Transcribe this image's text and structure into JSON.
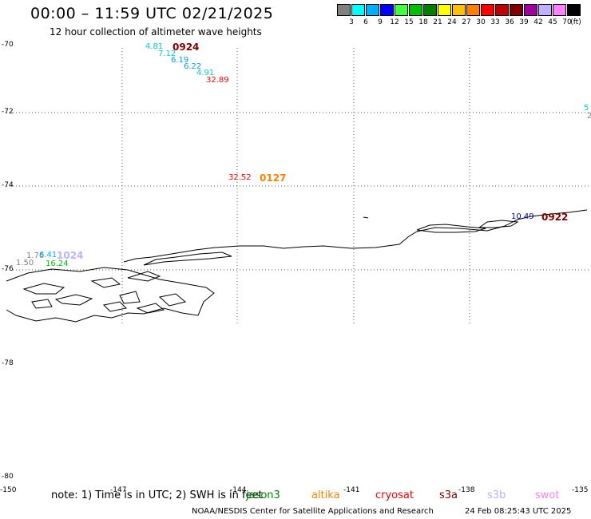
{
  "header": {
    "title": "00:00 – 11:59 UTC 02/21/2025",
    "subtitle": "12 hour collection of altimeter wave heights",
    "legend_unit": "(ft)"
  },
  "legend": [
    {
      "color": "#808080",
      "label": "3"
    },
    {
      "color": "#00ffff",
      "label": "6"
    },
    {
      "color": "#00b0ff",
      "label": "9"
    },
    {
      "color": "#0000ff",
      "label": "12"
    },
    {
      "color": "#40ff40",
      "label": "15"
    },
    {
      "color": "#00c000",
      "label": "18"
    },
    {
      "color": "#008000",
      "label": "21"
    },
    {
      "color": "#ffff00",
      "label": "24"
    },
    {
      "color": "#ffc000",
      "label": "27"
    },
    {
      "color": "#ff8000",
      "label": "30"
    },
    {
      "color": "#ff0000",
      "label": "33"
    },
    {
      "color": "#c00000",
      "label": "36"
    },
    {
      "color": "#800000",
      "label": "39"
    },
    {
      "color": "#a000a0",
      "label": "42"
    },
    {
      "color": "#c0b0ff",
      "label": "45"
    },
    {
      "color": "#ff80ff",
      "label": "70"
    },
    {
      "color": "#000000",
      "label": ""
    }
  ],
  "axes": {
    "lat_labels": [
      "-70",
      "-72",
      "-74",
      "-76",
      "-78",
      "-80"
    ],
    "lon_labels": [
      "-150",
      "-147",
      "-144",
      "-141",
      "-138",
      "-135"
    ]
  },
  "observations": [
    {
      "text": "4.81",
      "color": "#00cccc"
    },
    {
      "text": "7.12",
      "color": "#00cccc"
    },
    {
      "text": "6.19",
      "color": "#00a0e0"
    },
    {
      "text": "6.22",
      "color": "#00a0e0"
    },
    {
      "text": "4.91",
      "color": "#00cccc"
    },
    {
      "text": "32.89",
      "color": "#ff0000"
    },
    {
      "text": "32.52",
      "color": "#ff0000"
    },
    {
      "text": "10.49",
      "color": "#0000aa"
    },
    {
      "text": "1.76",
      "color": "#808080"
    },
    {
      "text": "1.50",
      "color": "#808080"
    },
    {
      "text": "6.41",
      "color": "#00b0ff"
    },
    {
      "text": "16.24",
      "color": "#00c000"
    },
    {
      "text": "5",
      "color": "#00cccc"
    },
    {
      "text": "2",
      "color": "#808080"
    }
  ],
  "passes": [
    {
      "text": "0924",
      "color": "#800000"
    },
    {
      "text": "0127",
      "color": "#ff8000"
    },
    {
      "text": "0922",
      "color": "#800000"
    },
    {
      "text": "1024",
      "color": "#c0b0ff"
    }
  ],
  "note": "note: 1) Time is in UTC; 2) SWH is in feet",
  "satellites": [
    {
      "name": "jason3",
      "color": "#008000"
    },
    {
      "name": "altika",
      "color": "#ff8000"
    },
    {
      "name": "cryosat",
      "color": "#ff0000"
    },
    {
      "name": "s3a",
      "color": "#800000"
    },
    {
      "name": "s3b",
      "color": "#c0b0ff"
    },
    {
      "name": "swot",
      "color": "#ff80ff"
    }
  ],
  "footer": {
    "credit": "NOAA/NESDIS Center for Satellite Applications and Research",
    "timestamp": "24 Feb 08:25:43 UTC 2025"
  }
}
